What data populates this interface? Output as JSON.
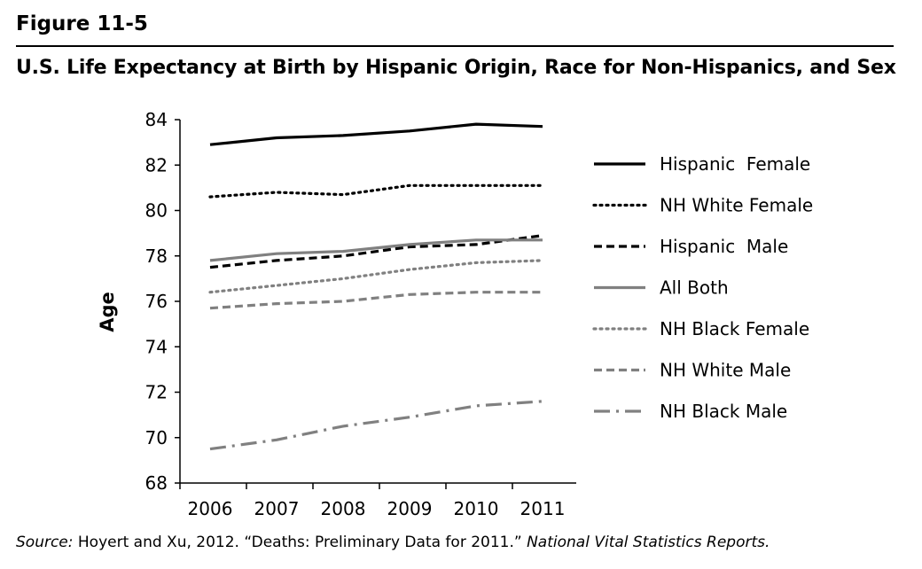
{
  "figure_label": "Figure 11-5",
  "title": "U.S. Life Expectancy at Birth by Hispanic Origin, Race for Non-Hispanics, and Sex",
  "source": {
    "prefix": "Source:",
    "text": " Hoyert and Xu, 2012. “Deaths: Preliminary Data for 2011.” ",
    "publication": "National Vital Statistics Reports."
  },
  "chart_data": {
    "type": "line",
    "x": [
      2006,
      2007,
      2008,
      2009,
      2010,
      2011
    ],
    "xlabel": "",
    "ylabel": "Age",
    "ylim": [
      68,
      84
    ],
    "yticks": [
      68,
      70,
      72,
      74,
      76,
      78,
      80,
      82,
      84
    ],
    "grid": false,
    "legend_position": "right",
    "series": [
      {
        "name": "Hispanic  Female",
        "values": [
          82.9,
          83.2,
          83.3,
          83.5,
          83.8,
          83.7
        ],
        "color": "#000000",
        "style": "solid"
      },
      {
        "name": "NH White Female",
        "values": [
          80.6,
          80.8,
          80.7,
          81.1,
          81.1,
          81.1
        ],
        "color": "#000000",
        "style": "dotted"
      },
      {
        "name": "Hispanic  Male",
        "values": [
          77.5,
          77.8,
          78.0,
          78.4,
          78.5,
          78.9
        ],
        "color": "#000000",
        "style": "dashed"
      },
      {
        "name": "All Both",
        "values": [
          77.8,
          78.1,
          78.2,
          78.5,
          78.7,
          78.7
        ],
        "color": "#808080",
        "style": "solid"
      },
      {
        "name": "NH Black Female",
        "values": [
          76.4,
          76.7,
          77.0,
          77.4,
          77.7,
          77.8
        ],
        "color": "#808080",
        "style": "dotted"
      },
      {
        "name": "NH White Male",
        "values": [
          75.7,
          75.9,
          76.0,
          76.3,
          76.4,
          76.4
        ],
        "color": "#808080",
        "style": "dashed"
      },
      {
        "name": "NH Black Male",
        "values": [
          69.5,
          69.9,
          70.5,
          70.9,
          71.4,
          71.6
        ],
        "color": "#808080",
        "style": "dashdot"
      }
    ]
  }
}
